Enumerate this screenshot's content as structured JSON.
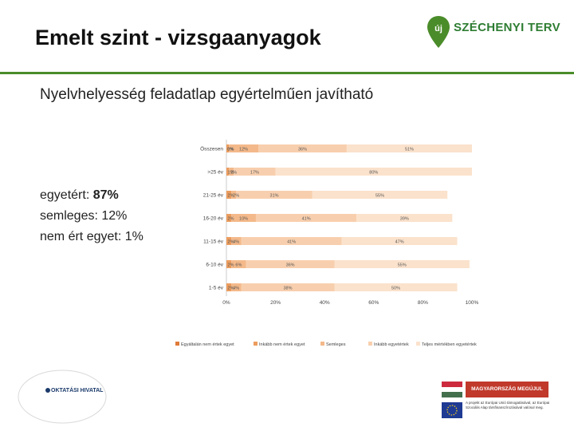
{
  "slide": {
    "title": "Emelt szint - vizsgaanyagok",
    "subtitle": "Nyelvhelyesség feladatlap egyértelműen javítható"
  },
  "summary": {
    "agree_label": "egyetért: ",
    "agree_value": "87%",
    "neutral": "semleges: 12%",
    "disagree": "nem ért egyet: 1%"
  },
  "logo": {
    "text": "SZÉCHENYI TERV",
    "mark": "új"
  },
  "footer": {
    "agency": "OKTATÁSI HIVATAL",
    "banner": "MAGYARORSZÁG MEGÚJUL",
    "eu_note": "A projekt az Európai Unió támogatásával, az Európai Szociális Alap társfinanszírozásával valósul meg."
  },
  "colors": {
    "brand_green": "#4a8c2a",
    "series": [
      "#e07b39",
      "#ec9d5f",
      "#f4b98a",
      "#f8cfae",
      "#fbe2cc"
    ]
  },
  "chart_data": {
    "type": "bar",
    "orientation": "horizontal",
    "stacked": true,
    "categories": [
      "Összesen",
      ">25 év",
      "21-25 év",
      "16-20 év",
      "11-15 év",
      "6-10 év",
      "1-5 év"
    ],
    "series": [
      {
        "name": "Egyáltalán nem értek egyet",
        "values": [
          0,
          0,
          0,
          0,
          0,
          0,
          0
        ]
      },
      {
        "name": "Inkább nem értek egyet",
        "values": [
          1,
          1,
          2,
          2,
          2,
          2,
          2
        ]
      },
      {
        "name": "Semleges",
        "values": [
          12,
          2,
          2,
          10,
          4,
          6,
          4
        ]
      },
      {
        "name": "Inkább egyetértek",
        "values": [
          36,
          17,
          31,
          41,
          41,
          36,
          38
        ]
      },
      {
        "name": "Teljes mértékben egyetértek",
        "values": [
          51,
          80,
          55,
          39,
          47,
          55,
          50
        ]
      }
    ],
    "data_labels": [
      [
        "0%",
        "1%",
        "12%",
        "36%",
        "51%"
      ],
      [
        "",
        "1%",
        "2%",
        "17%",
        "80%"
      ],
      [
        "",
        "2%",
        "2%",
        "31%",
        "55%"
      ],
      [
        "",
        "2%",
        "10%",
        "41%",
        "39%"
      ],
      [
        "",
        "2%",
        "4%",
        "41%",
        "47%"
      ],
      [
        "",
        "2%",
        "6%",
        "36%",
        "55%"
      ],
      [
        "",
        "2%",
        "4%",
        "38%",
        "50%"
      ]
    ],
    "x_ticks": [
      "0%",
      "20%",
      "40%",
      "60%",
      "80%",
      "100%"
    ],
    "xlim": [
      0,
      100
    ],
    "legend_position": "bottom"
  }
}
